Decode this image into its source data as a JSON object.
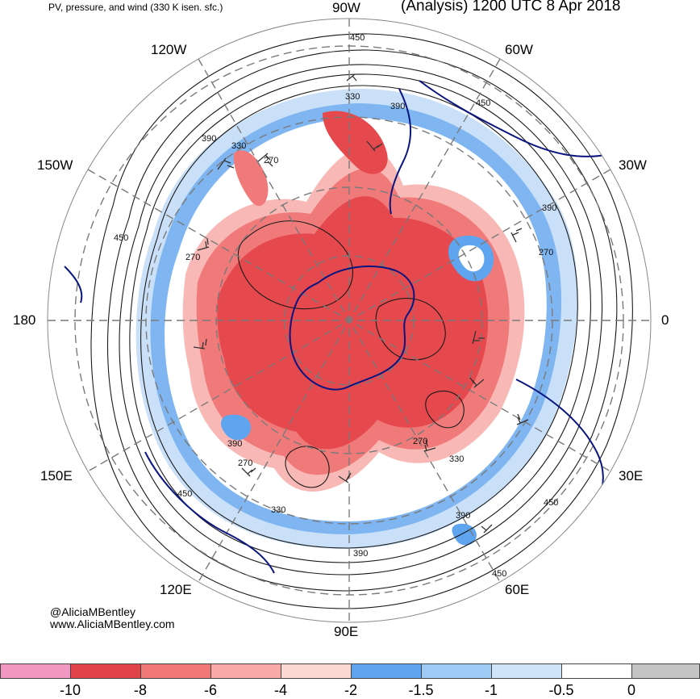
{
  "header": {
    "product": "PV, pressure, and wind (330 K isen. sfc.)",
    "valid": "(Analysis) 1200 UTC 8 Apr 2018"
  },
  "longitude_labels": [
    "90W",
    "60W",
    "30W",
    "0",
    "30E",
    "60E",
    "90E",
    "120E",
    "150E",
    "180",
    "150W",
    "120W"
  ],
  "contour_labels": [
    "450",
    "330",
    "390",
    "450",
    "390",
    "330",
    "270",
    "390",
    "450",
    "270",
    "270",
    "390",
    "270",
    "330",
    "270",
    "450",
    "330",
    "390",
    "390",
    "450",
    "450"
  ],
  "credits": {
    "twitter": "@AliciaMBentley",
    "website": "www.AliciaMBentley.com"
  },
  "colorbar": {
    "ticks": [
      "-10",
      "-8",
      "-6",
      "-4",
      "-2",
      "-1.5",
      "-1",
      "-0.5",
      "0"
    ],
    "colors": [
      "#f296c2",
      "#e0434a",
      "#f17676",
      "#f9aaa8",
      "#fbd7d4",
      "#5ea4ee",
      "#9ecbf5",
      "#cfe3f9",
      "#ffffff",
      "#c4c4c4"
    ]
  },
  "map_style": {
    "high_pv": "#e5484d",
    "high_pv_mid": "#f07a7a",
    "high_pv_light": "#f8b8b5",
    "low_pv": "#5ea4ee",
    "low_pv_light": "#a9d0f6",
    "grid": "#7a7a7a",
    "coast": "#0a1580",
    "contour": "#1a1a1a"
  }
}
